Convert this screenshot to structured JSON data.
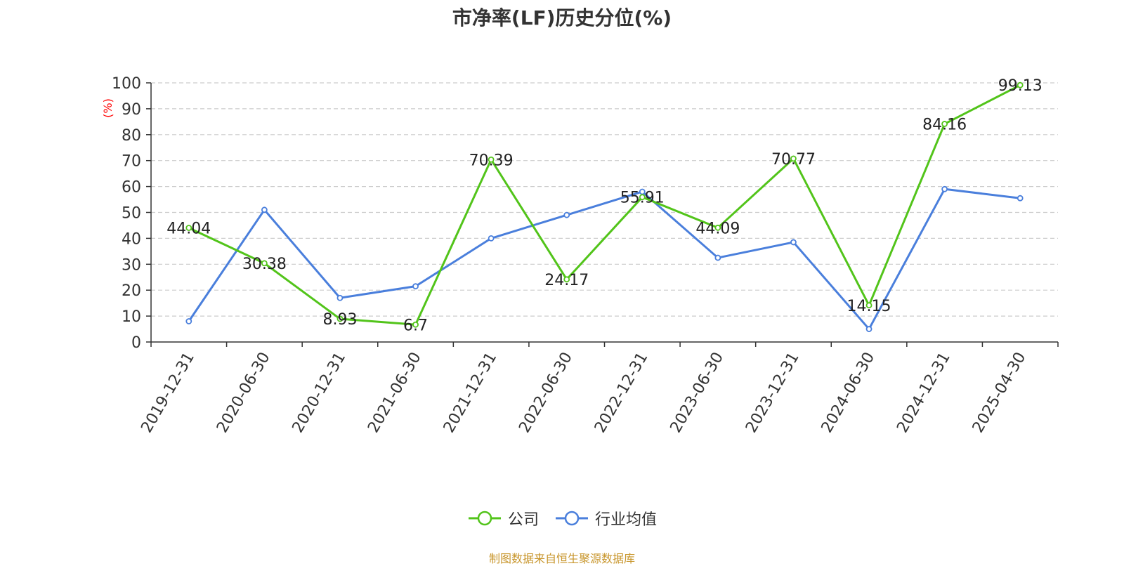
{
  "chart_data": {
    "type": "line",
    "title": "市净率(LF)历史分位(%)",
    "ylabel": "(%)",
    "xlabel": "",
    "ylim": [
      0,
      100
    ],
    "yticks": [
      0,
      10,
      20,
      30,
      40,
      50,
      60,
      70,
      80,
      90,
      100
    ],
    "grid": true,
    "legend_position": "bottom-center",
    "categories": [
      "2019-12-31",
      "2020-06-30",
      "2020-12-31",
      "2021-06-30",
      "2021-12-31",
      "2022-06-30",
      "2022-12-31",
      "2023-06-30",
      "2023-12-31",
      "2024-06-30",
      "2024-12-31",
      "2025-04-30"
    ],
    "series": [
      {
        "name": "公司",
        "color": "#52c41a",
        "values": [
          44.04,
          30.38,
          8.93,
          6.7,
          70.39,
          24.17,
          55.91,
          44.09,
          70.77,
          14.15,
          84.16,
          99.13
        ],
        "labels": [
          "44.04",
          "30.38",
          "8.93",
          "6.7",
          "70.39",
          "24.17",
          "55.91",
          "44.09",
          "70.77",
          "14.15",
          "84.16",
          "99.13"
        ]
      },
      {
        "name": "行业均值",
        "color": "#4a7fdc",
        "values": [
          8,
          51,
          17,
          21.5,
          40,
          49,
          58,
          32.5,
          38.5,
          5,
          59,
          55.5
        ]
      }
    ]
  },
  "source_note": "制图数据来自恒生聚源数据库",
  "colors": {
    "axis": "#333333",
    "grid": "#cccccc",
    "ylabel": "#ff0000"
  }
}
